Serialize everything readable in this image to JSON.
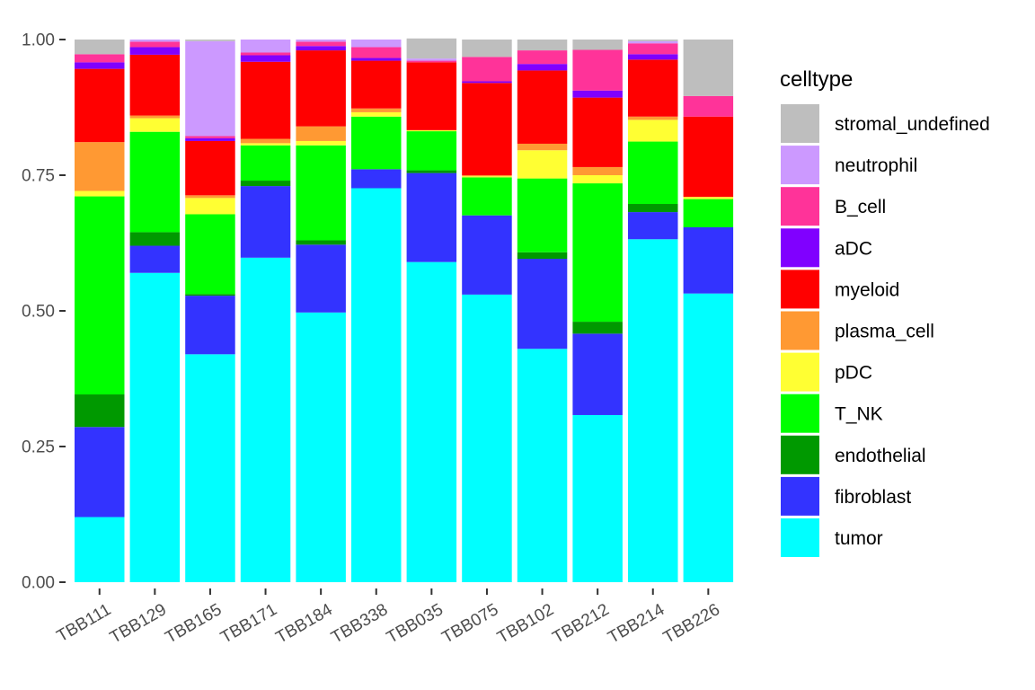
{
  "chart_data": {
    "type": "bar",
    "stacked": true,
    "categories": [
      "TBB111",
      "TBB129",
      "TBB165",
      "TBB171",
      "TBB184",
      "TBB338",
      "TBB035",
      "TBB075",
      "TBB102",
      "TBB212",
      "TBB214",
      "TBB226"
    ],
    "ylim": [
      0,
      1
    ],
    "yticks": [
      "0.00",
      "0.25",
      "0.50",
      "0.75",
      "1.00"
    ],
    "ytick_values": [
      0,
      0.25,
      0.5,
      0.75,
      1.0
    ],
    "xlabel": "",
    "ylabel": "",
    "grid": false,
    "legend": {
      "title": "celltype",
      "position": "right"
    },
    "series": [
      {
        "name": "tumor",
        "color": "#00FFFF",
        "values": [
          0.12,
          0.57,
          0.42,
          0.598,
          0.497,
          0.726,
          0.59,
          0.53,
          0.43,
          0.308,
          0.632,
          0.532
        ]
      },
      {
        "name": "fibroblast",
        "color": "#3333FF",
        "values": [
          0.166,
          0.05,
          0.108,
          0.132,
          0.125,
          0.035,
          0.164,
          0.146,
          0.166,
          0.15,
          0.05,
          0.122
        ]
      },
      {
        "name": "endothelial",
        "color": "#009900",
        "values": [
          0.06,
          0.025,
          0.003,
          0.01,
          0.008,
          0.0,
          0.005,
          0.0,
          0.012,
          0.022,
          0.015,
          0.0
        ]
      },
      {
        "name": "T_NK",
        "color": "#00FF00",
        "values": [
          0.365,
          0.185,
          0.147,
          0.065,
          0.175,
          0.097,
          0.072,
          0.07,
          0.136,
          0.255,
          0.115,
          0.052
        ]
      },
      {
        "name": "pDC",
        "color": "#FFFF33",
        "values": [
          0.01,
          0.025,
          0.03,
          0.004,
          0.008,
          0.008,
          0.002,
          0.002,
          0.052,
          0.015,
          0.04,
          0.004
        ]
      },
      {
        "name": "plasma_cell",
        "color": "#FF9933",
        "values": [
          0.09,
          0.005,
          0.005,
          0.008,
          0.027,
          0.007,
          0.0,
          0.002,
          0.012,
          0.015,
          0.006,
          0.0
        ]
      },
      {
        "name": "myeloid",
        "color": "#FF0000",
        "values": [
          0.135,
          0.112,
          0.1,
          0.142,
          0.14,
          0.088,
          0.125,
          0.17,
          0.135,
          0.128,
          0.105,
          0.148
        ]
      },
      {
        "name": "aDC",
        "color": "#8000FF",
        "values": [
          0.012,
          0.014,
          0.005,
          0.012,
          0.008,
          0.005,
          0.0,
          0.003,
          0.012,
          0.013,
          0.01,
          0.0
        ]
      },
      {
        "name": "B_cell",
        "color": "#FF3399",
        "values": [
          0.015,
          0.01,
          0.004,
          0.005,
          0.008,
          0.02,
          0.003,
          0.045,
          0.025,
          0.075,
          0.02,
          0.038
        ]
      },
      {
        "name": "neutrophil",
        "color": "#CC99FF",
        "values": [
          0.0,
          0.004,
          0.175,
          0.024,
          0.004,
          0.014,
          0.004,
          0.0,
          0.0,
          0.0,
          0.004,
          0.0
        ]
      },
      {
        "name": "stromal_undefined",
        "color": "#BEBEBE",
        "values": [
          0.027,
          0.0,
          0.003,
          0.0,
          0.0,
          0.0,
          0.037,
          0.032,
          0.02,
          0.019,
          0.003,
          0.104
        ]
      }
    ],
    "legend_order": [
      "stromal_undefined",
      "neutrophil",
      "B_cell",
      "aDC",
      "myeloid",
      "plasma_cell",
      "pDC",
      "T_NK",
      "endothelial",
      "fibroblast",
      "tumor"
    ]
  }
}
